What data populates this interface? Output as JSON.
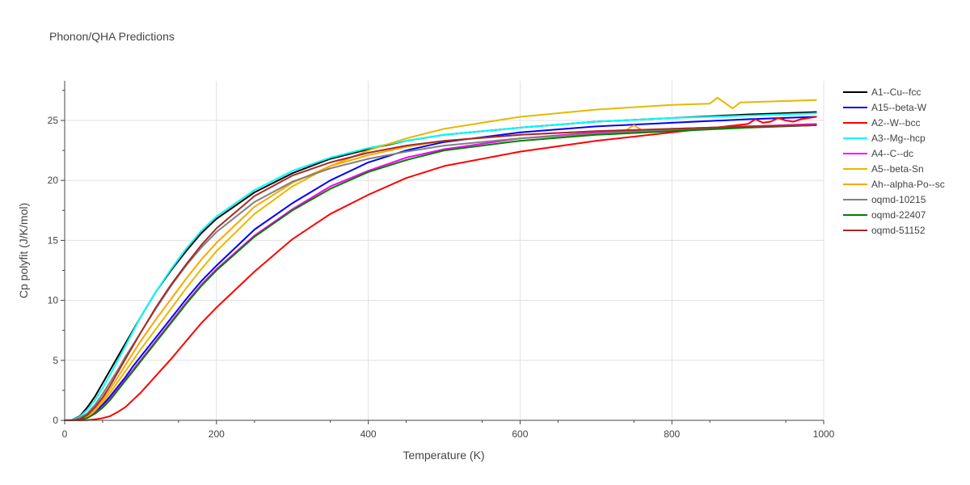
{
  "chart_data": {
    "type": "line",
    "title": "Phonon/QHA Predictions",
    "xlabel": "Temperature (K)",
    "ylabel": "Cp polyfit (J/K/mol)",
    "xlim": [
      0,
      1000
    ],
    "ylim": [
      0,
      28.3
    ],
    "xticks": [
      0,
      200,
      400,
      600,
      800,
      1000
    ],
    "yticks": [
      0,
      5,
      10,
      15,
      20,
      25
    ],
    "grid": true,
    "legend_position": "right",
    "series": [
      {
        "name": "A1--Cu--fcc",
        "color": "#000000",
        "x": [
          0,
          10,
          20,
          30,
          40,
          50,
          60,
          70,
          80,
          90,
          100,
          120,
          140,
          160,
          180,
          200,
          250,
          300,
          350,
          400,
          450,
          500,
          600,
          700,
          800,
          900,
          990
        ],
        "y": [
          0,
          0.05,
          0.35,
          1.1,
          2.0,
          3.1,
          4.2,
          5.3,
          6.4,
          7.5,
          8.6,
          10.7,
          12.5,
          14.1,
          15.6,
          16.8,
          19.0,
          20.6,
          21.8,
          22.6,
          23.3,
          23.8,
          24.4,
          24.9,
          25.2,
          25.5,
          25.7
        ]
      },
      {
        "name": "A15--beta-W",
        "color": "#0000ff",
        "x": [
          0,
          10,
          20,
          30,
          40,
          50,
          60,
          70,
          80,
          90,
          100,
          120,
          140,
          160,
          180,
          200,
          250,
          300,
          350,
          400,
          450,
          500,
          600,
          700,
          800,
          900,
          990
        ],
        "y": [
          0,
          0,
          0.05,
          0.25,
          0.7,
          1.3,
          2.0,
          2.8,
          3.6,
          4.5,
          5.3,
          6.9,
          8.5,
          10.1,
          11.6,
          12.9,
          15.9,
          18.1,
          20.0,
          21.5,
          22.5,
          23.2,
          24.0,
          24.5,
          24.8,
          25.1,
          25.3
        ]
      },
      {
        "name": "A2--W--bcc",
        "color": "#ff0000",
        "x": [
          0,
          10,
          20,
          30,
          40,
          50,
          60,
          70,
          80,
          90,
          100,
          120,
          140,
          160,
          180,
          200,
          250,
          300,
          350,
          400,
          450,
          500,
          600,
          700,
          800,
          900,
          905,
          910,
          920,
          930,
          940,
          950,
          960,
          970,
          990
        ],
        "y": [
          0,
          0,
          0,
          0.02,
          0.08,
          0.18,
          0.35,
          0.7,
          1.1,
          1.7,
          2.3,
          3.7,
          5.1,
          6.6,
          8.1,
          9.4,
          12.4,
          15.1,
          17.2,
          18.8,
          20.2,
          21.2,
          22.4,
          23.3,
          24.0,
          24.7,
          24.9,
          25.1,
          24.8,
          24.9,
          25.2,
          25.0,
          24.9,
          25.1,
          25.3
        ]
      },
      {
        "name": "A3--Mg--hcp",
        "color": "#00ffff",
        "x": [
          0,
          10,
          20,
          30,
          40,
          50,
          60,
          70,
          80,
          90,
          100,
          120,
          140,
          160,
          180,
          200,
          250,
          300,
          350,
          400,
          450,
          500,
          600,
          700,
          800,
          900,
          990
        ],
        "y": [
          0,
          0.04,
          0.3,
          0.9,
          1.7,
          2.7,
          3.8,
          5.0,
          6.2,
          7.4,
          8.6,
          10.7,
          12.6,
          14.3,
          15.8,
          17.0,
          19.2,
          20.8,
          21.9,
          22.7,
          23.3,
          23.8,
          24.4,
          24.9,
          25.2,
          25.4,
          25.6
        ]
      },
      {
        "name": "A4--C--dc",
        "color": "#ff00ff",
        "x": [
          0,
          10,
          20,
          30,
          40,
          50,
          60,
          70,
          80,
          90,
          100,
          120,
          140,
          160,
          180,
          200,
          250,
          300,
          350,
          400,
          450,
          500,
          600,
          700,
          800,
          900,
          990
        ],
        "y": [
          0,
          0,
          0.05,
          0.2,
          0.6,
          1.1,
          1.8,
          2.6,
          3.4,
          4.2,
          5.0,
          6.6,
          8.2,
          9.8,
          11.3,
          12.6,
          15.4,
          17.6,
          19.5,
          20.8,
          21.9,
          22.6,
          23.5,
          24.0,
          24.3,
          24.5,
          24.7
        ]
      },
      {
        "name": "A5--beta-Sn",
        "color": "#e6b800",
        "x": [
          0,
          10,
          20,
          30,
          40,
          50,
          60,
          70,
          80,
          90,
          100,
          120,
          140,
          160,
          180,
          200,
          250,
          300,
          350,
          400,
          450,
          500,
          600,
          700,
          800,
          850,
          860,
          880,
          890,
          990
        ],
        "y": [
          0,
          0,
          0.06,
          0.3,
          0.8,
          1.5,
          2.3,
          3.2,
          4.1,
          5.0,
          5.9,
          7.6,
          9.3,
          11.0,
          12.6,
          14.1,
          17.2,
          19.5,
          21.2,
          22.5,
          23.5,
          24.3,
          25.3,
          25.9,
          26.3,
          26.4,
          26.9,
          26.0,
          26.5,
          26.7
        ]
      },
      {
        "name": "Ah--alpha-Po--sc",
        "color": "#ffa500",
        "x": [
          0,
          10,
          20,
          30,
          40,
          50,
          60,
          70,
          80,
          90,
          100,
          120,
          140,
          160,
          180,
          200,
          250,
          300,
          350,
          400,
          450,
          500,
          600,
          700,
          740,
          750,
          760,
          800,
          900,
          990
        ],
        "y": [
          0,
          0,
          0.08,
          0.35,
          0.9,
          1.7,
          2.6,
          3.6,
          4.6,
          5.6,
          6.6,
          8.4,
          10.1,
          11.8,
          13.4,
          14.8,
          17.8,
          19.8,
          21.2,
          22.1,
          22.8,
          23.3,
          23.8,
          24.1,
          24.2,
          24.6,
          24.2,
          24.3,
          24.5,
          24.6
        ]
      },
      {
        "name": "oqmd-10215",
        "color": "#808080",
        "x": [
          0,
          10,
          20,
          30,
          40,
          50,
          60,
          70,
          80,
          90,
          100,
          120,
          140,
          160,
          180,
          200,
          250,
          300,
          350,
          400,
          450,
          500,
          600,
          700,
          800,
          900,
          990
        ],
        "y": [
          0,
          0.02,
          0.2,
          0.6,
          1.3,
          2.2,
          3.2,
          4.2,
          5.3,
          6.3,
          7.3,
          9.3,
          11.2,
          12.9,
          14.4,
          15.7,
          18.2,
          19.9,
          21.0,
          21.8,
          22.4,
          22.9,
          23.5,
          23.9,
          24.2,
          24.4,
          24.6
        ]
      },
      {
        "name": "oqmd-22407",
        "color": "#008000",
        "x": [
          0,
          10,
          20,
          30,
          40,
          50,
          60,
          70,
          80,
          90,
          100,
          120,
          140,
          160,
          180,
          200,
          250,
          300,
          350,
          400,
          450,
          500,
          600,
          700,
          800,
          900,
          990
        ],
        "y": [
          0,
          0,
          0.04,
          0.2,
          0.55,
          1.05,
          1.7,
          2.5,
          3.3,
          4.1,
          4.9,
          6.5,
          8.1,
          9.7,
          11.2,
          12.5,
          15.3,
          17.5,
          19.3,
          20.7,
          21.7,
          22.5,
          23.3,
          23.8,
          24.1,
          24.4,
          24.6
        ]
      },
      {
        "name": "oqmd-51152",
        "color": "#a52a2a",
        "x": [
          0,
          10,
          20,
          30,
          40,
          50,
          60,
          70,
          80,
          90,
          100,
          120,
          140,
          160,
          180,
          200,
          250,
          300,
          350,
          400,
          450,
          500,
          600,
          700,
          800,
          900,
          990
        ],
        "y": [
          0,
          0,
          0.1,
          0.45,
          1.1,
          1.9,
          2.9,
          4.0,
          5.1,
          6.2,
          7.3,
          9.4,
          11.3,
          13.0,
          14.6,
          16.0,
          18.7,
          20.4,
          21.5,
          22.3,
          22.9,
          23.3,
          23.8,
          24.1,
          24.3,
          24.5,
          24.6
        ]
      }
    ]
  }
}
